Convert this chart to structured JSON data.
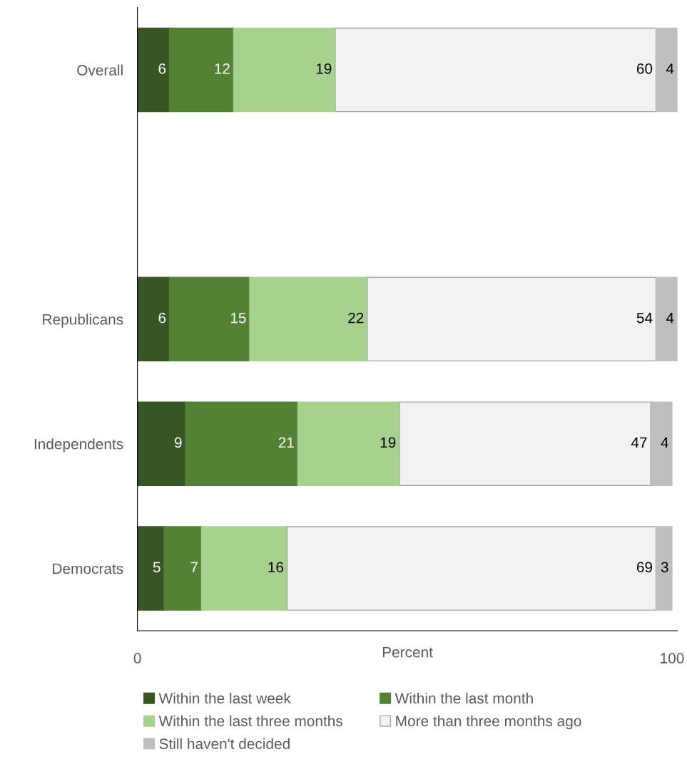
{
  "chart_data": {
    "type": "bar",
    "orientation": "horizontal",
    "stacked": true,
    "xlabel": "Percent",
    "categories": [
      "Overall",
      null,
      "Republicans",
      "Independents",
      "Democrats"
    ],
    "series": [
      {
        "name": "Within the last week",
        "color": "#375623",
        "values": [
          6,
          null,
          6,
          9,
          5
        ]
      },
      {
        "name": "Within the last month",
        "color": "#548235",
        "values": [
          12,
          null,
          15,
          21,
          7
        ]
      },
      {
        "name": "Within the last three months",
        "color": "#a9d18e",
        "values": [
          19,
          null,
          22,
          19,
          16
        ]
      },
      {
        "name": "More than three months ago",
        "color": "#f2f2f2",
        "values": [
          60,
          null,
          54,
          47,
          69
        ]
      },
      {
        "name": "Still haven't decided",
        "color": "#bfbfbf",
        "values": [
          4,
          null,
          4,
          4,
          3
        ]
      }
    ],
    "xlim": [
      0,
      101
    ],
    "xticks": [
      0,
      100
    ],
    "data_labels": true,
    "grid": false,
    "legend": "bottom"
  }
}
